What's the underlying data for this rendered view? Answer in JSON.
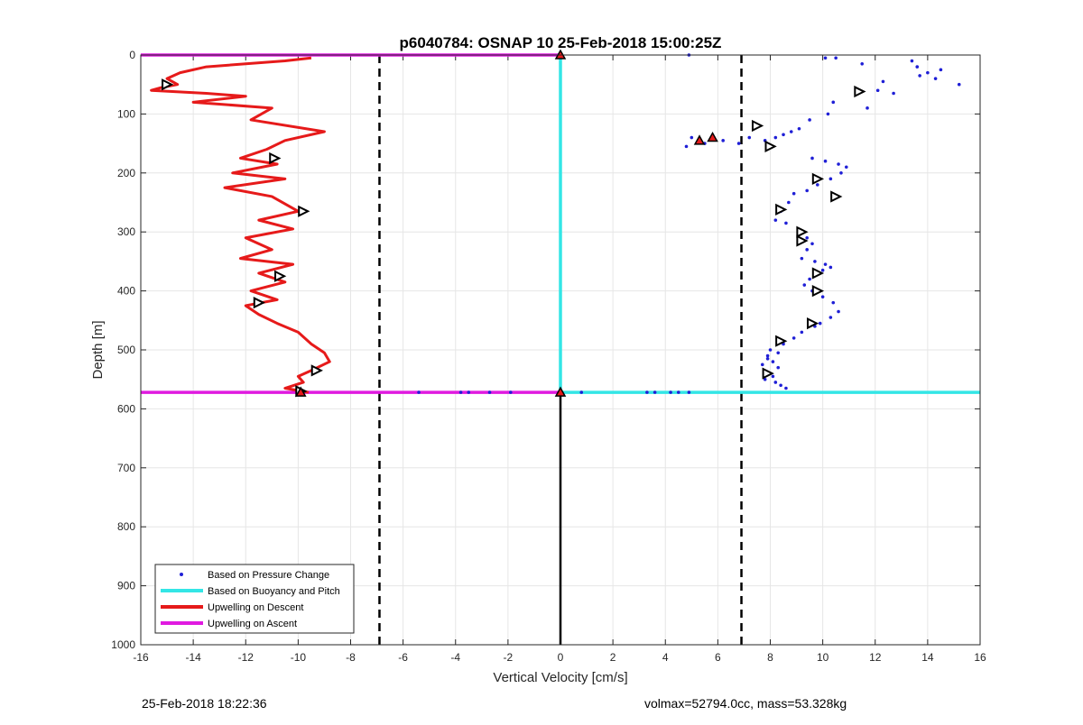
{
  "chart_data": {
    "type": "scatter",
    "title": "p6040784: OSNAP 10 25-Feb-2018 15:00:25Z",
    "xlabel": "Vertical Velocity [cm/s]",
    "ylabel": "Depth [m]",
    "xlim": [
      -16,
      16
    ],
    "ylim": [
      0,
      1000
    ],
    "y_reversed": true,
    "grid": true,
    "xticks": [
      -16,
      -14,
      -12,
      -10,
      -8,
      -6,
      -4,
      -2,
      0,
      2,
      4,
      6,
      8,
      10,
      12,
      14,
      16
    ],
    "yticks": [
      0,
      100,
      200,
      300,
      400,
      500,
      600,
      700,
      800,
      900,
      1000
    ],
    "legend_position": "bottom-left",
    "legend": [
      {
        "label": "Based on Pressure Change",
        "color": "#1f1fd6",
        "kind": "dot"
      },
      {
        "label": "Based on Buoyancy and Pitch",
        "color": "#33e6e6",
        "kind": "line"
      },
      {
        "label": "Upwelling on Descent",
        "color": "#e61a1a",
        "kind": "line"
      },
      {
        "label": "Upwelling on Ascent",
        "color": "#e01ae0",
        "kind": "line"
      }
    ],
    "threshold_lines": [
      -6.9,
      6.9
    ],
    "zero_line": 0,
    "dive_depth": 572,
    "buoyancy_pitch": {
      "x": [
        0,
        0,
        16
      ],
      "y": [
        0,
        572,
        572
      ]
    },
    "upwelling_ascent": {
      "x": [
        -16,
        0,
        -16,
        0
      ],
      "y": [
        0,
        0,
        572,
        572
      ]
    },
    "upwelling_descent": {
      "x": [
        -9.5,
        -10.5,
        -13.5,
        -14.5,
        -15,
        -14.6,
        -15.2,
        -15.6,
        -13.5,
        -12,
        -14,
        -11,
        -11.8,
        -9,
        -10.5,
        -11.2,
        -12.2,
        -10.8,
        -12.5,
        -10.5,
        -12.8,
        -11,
        -10,
        -11.5,
        -10.2,
        -12,
        -11,
        -12.2,
        -10.2,
        -11.5,
        -10.5,
        -11.8,
        -10.8,
        -12,
        -11.5,
        -10.8,
        -10,
        -9.5,
        -9,
        -8.8,
        -9.5,
        -10,
        -9.8,
        -10.5,
        -9.6
      ],
      "y": [
        5,
        10,
        20,
        30,
        40,
        50,
        55,
        60,
        65,
        70,
        80,
        90,
        110,
        130,
        145,
        160,
        175,
        185,
        200,
        210,
        225,
        240,
        265,
        280,
        295,
        310,
        330,
        345,
        355,
        370,
        385,
        400,
        415,
        425,
        440,
        455,
        470,
        490,
        505,
        520,
        535,
        545,
        555,
        565,
        572
      ]
    },
    "pressure_change": {
      "x": [
        4.9,
        10.1,
        10.5,
        11.5,
        12.3,
        12.1,
        13.4,
        13.6,
        14,
        14.3,
        14.5,
        15.2,
        13.7,
        12.7,
        11.7,
        10.4,
        10.2,
        9.5,
        9.1,
        8.8,
        8.5,
        8.2,
        7.8,
        7.2,
        6.8,
        6.2,
        5.5,
        5,
        4.8,
        9.6,
        10.1,
        10.6,
        10.9,
        10.7,
        10.3,
        9.8,
        9.4,
        8.9,
        8.7,
        8.4,
        8.2,
        8.6,
        9.1,
        9.4,
        9.6,
        9.4,
        9.2,
        9.7,
        10.1,
        10.3,
        10.0,
        9.5,
        9.3,
        9.6,
        10.0,
        10.4,
        10.6,
        10.3,
        9.9,
        9.7,
        9.2,
        8.9,
        8.5,
        8.0,
        7.9,
        8.1,
        8.3,
        8.0,
        7.8,
        8.2,
        8.4,
        8.6,
        8.1,
        7.7,
        7.9,
        8.3,
        -5.4,
        -3.8,
        -3.5,
        -2.7,
        -1.9,
        0.8,
        3.3,
        3.6,
        4.2,
        4.5,
        4.9
      ],
      "y": [
        0,
        5,
        5,
        15,
        45,
        60,
        10,
        20,
        30,
        40,
        25,
        50,
        35,
        65,
        90,
        80,
        100,
        110,
        125,
        130,
        135,
        140,
        145,
        140,
        150,
        145,
        150,
        140,
        155,
        175,
        180,
        185,
        190,
        200,
        210,
        220,
        230,
        235,
        250,
        265,
        280,
        285,
        300,
        310,
        320,
        330,
        345,
        350,
        355,
        360,
        365,
        380,
        390,
        400,
        410,
        420,
        435,
        445,
        455,
        460,
        470,
        480,
        490,
        500,
        510,
        520,
        530,
        540,
        550,
        555,
        560,
        565,
        545,
        525,
        515,
        505,
        572,
        572,
        572,
        572,
        572,
        572,
        572,
        572,
        572,
        572,
        572
      ]
    },
    "markers_open": {
      "x": [
        -15,
        -10.9,
        -9.8,
        -10.7,
        -11.5,
        -9.3,
        -9.9,
        11.4,
        7.5,
        8,
        9.8,
        10.5,
        8.4,
        9.2,
        9.2,
        9.8,
        9.8,
        9.6,
        8.4,
        7.9
      ],
      "y": [
        50,
        175,
        265,
        375,
        420,
        535,
        570,
        62,
        120,
        155,
        210,
        240,
        262,
        300,
        315,
        370,
        400,
        455,
        485,
        540
      ]
    },
    "markers_filled": {
      "x": [
        5.3,
        5.8,
        0,
        0,
        -9.9
      ],
      "y": [
        145,
        140,
        0,
        572,
        572
      ]
    }
  },
  "footer": {
    "left": "25-Feb-2018 18:22:36",
    "right": "volmax=52794.0cc, mass=53.328kg"
  }
}
